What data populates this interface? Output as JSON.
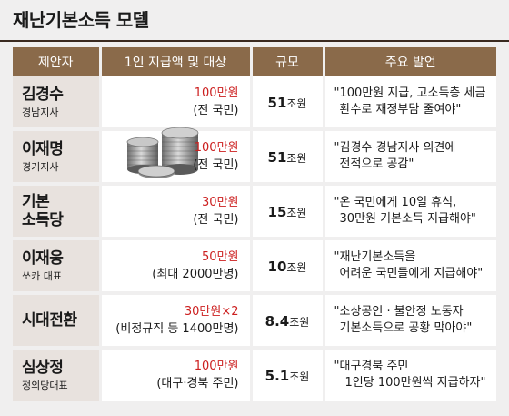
{
  "title": "재난기본소득 모델",
  "headers": {
    "proposer": "제안자",
    "amount": "1인 지급액 및 대상",
    "scale": "규모",
    "remarks": "주요 발언"
  },
  "rows": [
    {
      "name": "김경수",
      "affiliation": "경남지사",
      "amount_num": "100",
      "amount_unit": "만원",
      "amount_extra": "",
      "target": "(전 국민)",
      "scale_num": "51",
      "scale_unit": "조원",
      "quote_line1": "\"100만원 지급, 고소득층 세금",
      "quote_line2": "환수로 재정부담 줄여야\""
    },
    {
      "name": "이재명",
      "affiliation": "경기지사",
      "amount_num": "100",
      "amount_unit": "만원",
      "amount_extra": "",
      "target": "(전 국민)",
      "scale_num": "51",
      "scale_unit": "조원",
      "quote_line1": "\"김경수 경남지사 의견에",
      "quote_line2": "전적으로 공감\""
    },
    {
      "name": "기본",
      "name2": "소득당",
      "affiliation": "",
      "amount_num": "30",
      "amount_unit": "만원",
      "amount_extra": "",
      "target": "(전 국민)",
      "scale_num": "15",
      "scale_unit": "조원",
      "quote_line1": "\"온 국민에게 10일 휴식,",
      "quote_line2": "30만원 기본소득 지급해야\""
    },
    {
      "name": "이재웅",
      "affiliation": "쏘카 대표",
      "amount_num": "50",
      "amount_unit": "만원",
      "amount_extra": "",
      "target": "(최대 2000만명)",
      "scale_num": "10",
      "scale_unit": "조원",
      "quote_line1": "\"재난기본소득을",
      "quote_line2": "어려운 국민들에게 지급해야\""
    },
    {
      "name": "시대전환",
      "affiliation": "",
      "amount_num": "30",
      "amount_unit": "만원",
      "amount_extra": "×2",
      "target": "(비정규직 등 1400만명)",
      "scale_num": "8.4",
      "scale_unit": "조원",
      "quote_line1": "\"소상공인 · 불안정 노동자",
      "quote_line2": "기본소득으로 공황 막아야\""
    },
    {
      "name": "심상정",
      "affiliation": "정의당대표",
      "amount_num": "100",
      "amount_unit": "만원",
      "amount_extra": "",
      "target": "(대구·경북 주민)",
      "scale_num": "5.1",
      "scale_unit": "조원",
      "quote_line1": "\"대구경북 주민",
      "quote_line2": "1인당 100만원씩 지급하자\""
    }
  ],
  "colors": {
    "header_bg": "#8a6a4a",
    "name_cell_bg": "#e8e2de",
    "highlight_red": "#cc1f1f",
    "page_bg": "#f0efef"
  },
  "decoration": {
    "coins_icon": "coin-stack-icon"
  }
}
